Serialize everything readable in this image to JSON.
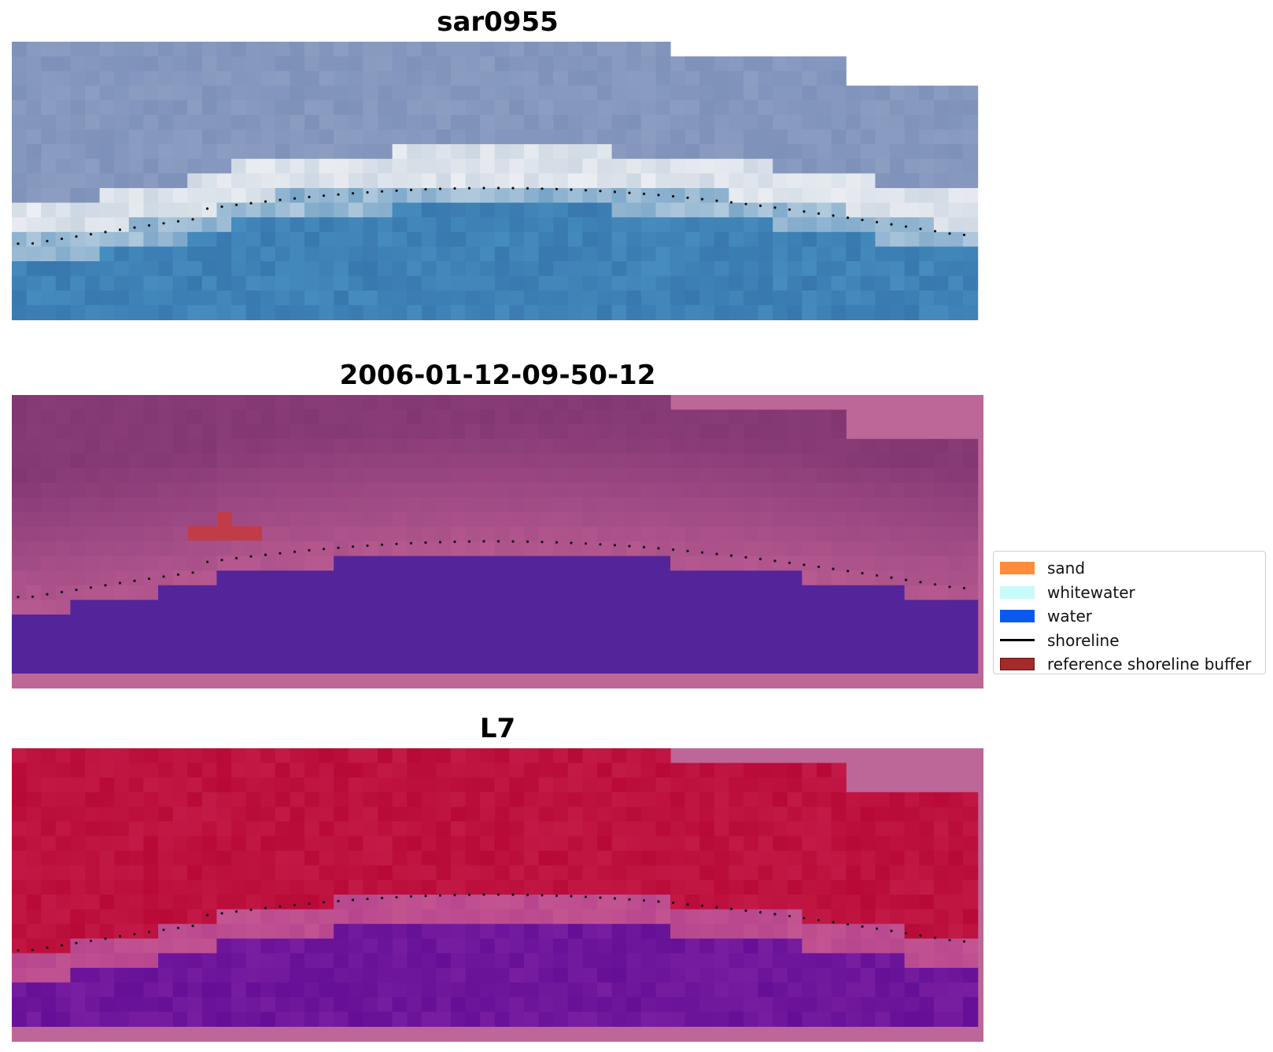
{
  "panels": [
    {
      "id": "rgb",
      "title": "sar0955"
    },
    {
      "id": "classified",
      "title": "2006-01-12-09-50-12"
    },
    {
      "id": "index",
      "title": "L7"
    }
  ],
  "legend": {
    "items": [
      {
        "label": "sand",
        "color": "#ff8c3a",
        "kind": "patch"
      },
      {
        "label": "whitewater",
        "color": "#c8fafa",
        "kind": "patch"
      },
      {
        "label": "water",
        "color": "#0a5af0",
        "kind": "patch"
      },
      {
        "label": "shoreline",
        "color": "#000000",
        "kind": "line"
      },
      {
        "label": "reference shoreline buffer",
        "color": "#a52a2a",
        "kind": "patch"
      }
    ]
  },
  "colors": {
    "frame_pink": "#bd6698",
    "class_water": "#54249a",
    "buffer_red": "#c23c48",
    "shore_dots": "#111111"
  }
}
